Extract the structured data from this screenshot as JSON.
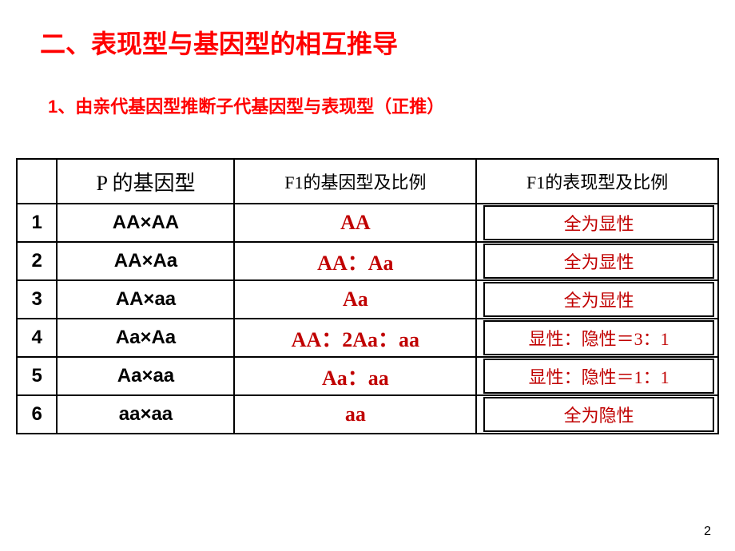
{
  "title": "二、表现型与基因型的相互推导",
  "subtitle": "1、由亲代基因型推断子代基因型与表现型（正推）",
  "headers": {
    "num": "",
    "p": "P 的基因型",
    "geno": "F1的基因型及比例",
    "pheno": "F1的表现型及比例"
  },
  "rows": [
    {
      "num": "1",
      "p": "AA×AA",
      "geno": "AA",
      "pheno": "全为显性"
    },
    {
      "num": "2",
      "p": "AA×Aa",
      "geno": "AA：Aa",
      "pheno": "全为显性"
    },
    {
      "num": "3",
      "p": "AA×aa",
      "geno": "Aa",
      "pheno": "全为显性"
    },
    {
      "num": "4",
      "p": "Aa×Aa",
      "geno": "AA：2Aa：aa",
      "pheno": "显性：隐性＝3：1"
    },
    {
      "num": "5",
      "p": "Aa×aa",
      "geno": "Aa：aa",
      "pheno": "显性：隐性＝1：1"
    },
    {
      "num": "6",
      "p": "aa×aa",
      "geno": "aa",
      "pheno": "全为隐性"
    }
  ],
  "pageNumber": "2",
  "colors": {
    "title": "#ff0000",
    "answer": "#c00000",
    "border": "#000000",
    "background": "#ffffff"
  }
}
